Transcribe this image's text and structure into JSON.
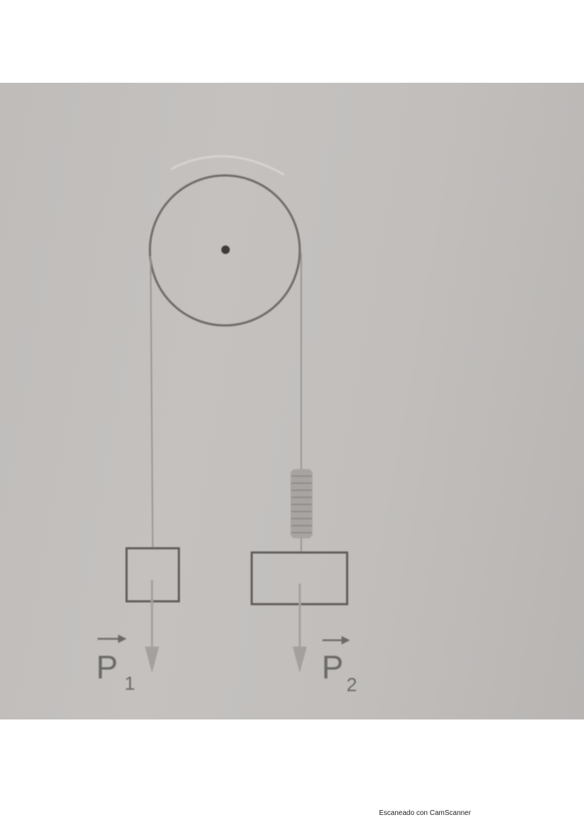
{
  "diagram": {
    "labels": {
      "p1_letter": "P",
      "p1_sub": "1",
      "p2_letter": "P",
      "p2_sub": "2"
    },
    "colors": {
      "background": "#c1bebc",
      "ink": "#6c6a68"
    }
  },
  "footer": {
    "scanner_text": "Escaneado con CamScanner"
  }
}
